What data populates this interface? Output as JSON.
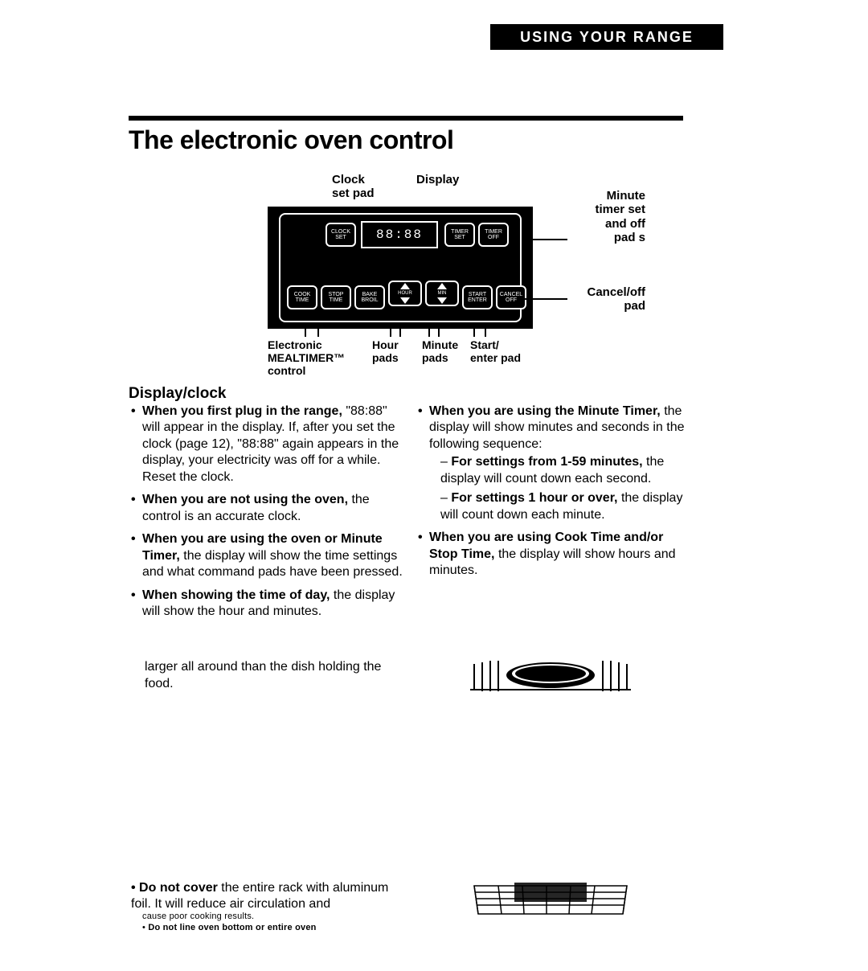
{
  "header": {
    "tab": "USING YOUR RANGE"
  },
  "title": "The electronic oven control",
  "diagram": {
    "labels": {
      "clock_set": "Clock\nset pad",
      "display": "Display",
      "minute_timer": "Minute\ntimer set\nand off\npad s",
      "cancel_off": "Cancel/off\npad"
    },
    "below": {
      "mealtimer": "Electronic\nMEALTIMER™\ncontrol",
      "hour": "Hour\npads",
      "minute": "Minute\npads",
      "start": "Start/\nenter pad"
    },
    "panel": {
      "clock_set_btn": "CLOCK\nSET",
      "display_value": "88:88",
      "timer_set_btn": "TIMER\nSET",
      "timer_off_btn": "TIMER\nOFF",
      "cook_time_btn": "COOK\nTIME",
      "stop_time_btn": "STOP\nTIME",
      "bake_btn": "BAKE\nBROIL",
      "hour_btn": "HOUR",
      "min_btn": "MIN",
      "start_btn": "START\nENTER",
      "cancel_btn": "CANCEL\nOFF"
    }
  },
  "section": {
    "heading": "Display/clock"
  },
  "left_col": [
    {
      "bold": "When you first plug in the range,",
      "rest": " \"88:88\" will appear in the display. If, after you set the clock (page 12), \"88:88\" again appears in the display, your electricity was off for a while. Reset the clock."
    },
    {
      "bold": "When you are not using the oven,",
      "rest": " the control is an accurate clock."
    },
    {
      "bold": "When you are using the oven or Minute Timer,",
      "rest": " the display will show the time settings and what command pads have been pressed."
    },
    {
      "bold": "When showing the time of day,",
      "rest": " the display will show the hour and minutes."
    }
  ],
  "right_col_top": {
    "bold": "When you are using the Minute Timer,",
    "rest": " the display will show minutes and seconds in the following sequence:"
  },
  "right_col_sub": [
    {
      "bold": "For settings from 1-59 minutes,",
      "rest": " the display will count down each second."
    },
    {
      "bold": "For settings 1 hour or over,",
      "rest": " the display will count down each minute."
    }
  ],
  "right_col_last": {
    "bold": "When you are using Cook Time and/or Stop Time,",
    "rest": " the display will show hours and minutes."
  },
  "fragment_left": "larger all around than the dish holding the food.",
  "bottom_li": {
    "bold": "Do not cover",
    "rest": " the entire rack with alumi­num foil. It will reduce air circulation and"
  },
  "bottom_small": "cause poor cooking results.",
  "bottom_cut": "Do not line oven bottom or entire oven"
}
